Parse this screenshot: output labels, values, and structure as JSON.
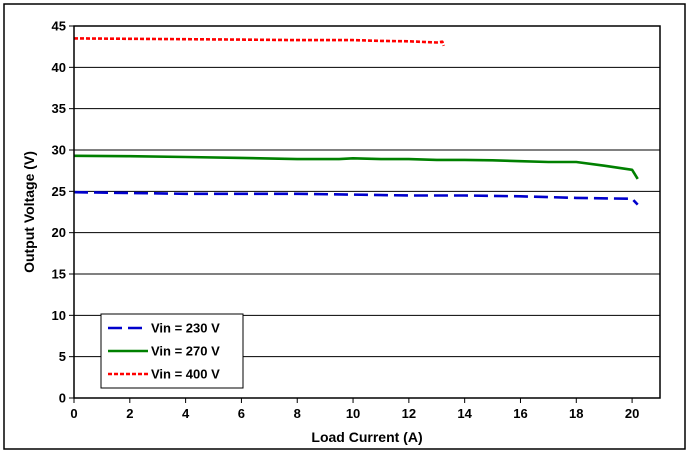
{
  "chart_data": {
    "type": "line",
    "title": "",
    "xlabel": "Load Current (A)",
    "ylabel": "Output Voltage (V)",
    "xlim": [
      0,
      21
    ],
    "ylim": [
      0,
      45
    ],
    "xticks": [
      0,
      2,
      4,
      6,
      8,
      10,
      12,
      14,
      16,
      18,
      20
    ],
    "yticks": [
      0,
      5,
      10,
      15,
      20,
      25,
      30,
      35,
      40,
      45
    ],
    "grid": "horizontal",
    "legend_position": "bottom-left",
    "series": [
      {
        "name": "Vin = 230 V",
        "color": "#0000cc",
        "style": "dashed",
        "x": [
          0,
          2,
          4,
          6,
          8,
          10,
          12,
          14,
          16,
          18,
          20,
          20.2
        ],
        "y": [
          24.9,
          24.8,
          24.7,
          24.7,
          24.7,
          24.6,
          24.5,
          24.5,
          24.4,
          24.2,
          24.1,
          23.4
        ]
      },
      {
        "name": "Vin = 270 V",
        "color": "#008000",
        "style": "solid",
        "x": [
          0,
          2,
          4,
          6,
          8,
          9.5,
          10,
          10.5,
          11,
          12,
          13,
          14,
          15,
          16,
          17,
          18,
          19,
          20,
          20.2
        ],
        "y": [
          29.3,
          29.25,
          29.15,
          29.05,
          28.9,
          28.9,
          29.0,
          28.95,
          28.9,
          28.9,
          28.8,
          28.8,
          28.75,
          28.65,
          28.55,
          28.55,
          28.1,
          27.6,
          26.5
        ]
      },
      {
        "name": "Vin = 400 V",
        "color": "#ff0000",
        "style": "dotted",
        "x": [
          0,
          2,
          4,
          6,
          8,
          10,
          11,
          12,
          13,
          13.2,
          13.25
        ],
        "y": [
          43.5,
          43.45,
          43.4,
          43.35,
          43.3,
          43.3,
          43.2,
          43.15,
          43.0,
          43.1,
          42.6
        ]
      }
    ]
  }
}
